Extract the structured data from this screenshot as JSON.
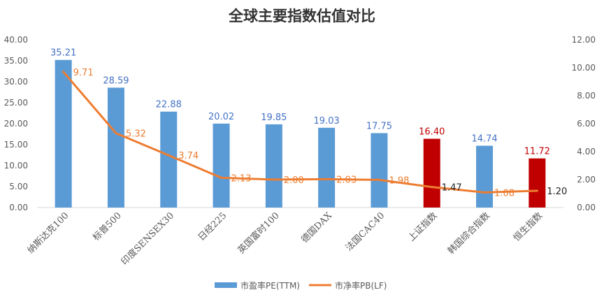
{
  "chart_data": {
    "type": "bar+line",
    "title": "全球主要指数估值对比",
    "categories": [
      "纳斯达克100",
      "标普500",
      "印度SENSEX30",
      "日经225",
      "英国富时100",
      "德国DAX",
      "法国CAC40",
      "上证指数",
      "韩国综合指数",
      "恒生指数"
    ],
    "series": [
      {
        "name": "市盈率PE(TTM)",
        "type": "bar",
        "axis": "left",
        "values": [
          35.21,
          28.59,
          22.88,
          20.02,
          19.85,
          19.03,
          17.75,
          16.4,
          14.74,
          11.72
        ],
        "labels": [
          "35.21",
          "28.59",
          "22.88",
          "20.02",
          "19.85",
          "19.03",
          "17.75",
          "16.40",
          "14.74",
          "11.72"
        ],
        "color": "#5B9BD5",
        "highlight_color": "#C00000",
        "highlight_indices": [
          7,
          9
        ]
      },
      {
        "name": "市净率PB(LF)",
        "type": "line",
        "axis": "right",
        "values": [
          9.71,
          5.32,
          3.74,
          2.13,
          2.0,
          2.03,
          1.98,
          1.47,
          1.08,
          1.2
        ],
        "labels": [
          "9.71",
          "5.32",
          "3.74",
          "2.13",
          "2.00",
          "2.03",
          "1.98",
          "1.47",
          "1.08",
          "1.20"
        ],
        "color": "#ED7D31"
      }
    ],
    "y_left": {
      "min": 0,
      "max": 40,
      "ticks": [
        "0.00",
        "5.00",
        "10.00",
        "15.00",
        "20.00",
        "25.00",
        "30.00",
        "35.00",
        "40.00"
      ]
    },
    "y_right": {
      "min": 0,
      "max": 12,
      "ticks": [
        "0.00",
        "2.00",
        "4.00",
        "6.00",
        "8.00",
        "10.00",
        "12.00"
      ]
    },
    "grid": false,
    "legend": "bottom"
  }
}
